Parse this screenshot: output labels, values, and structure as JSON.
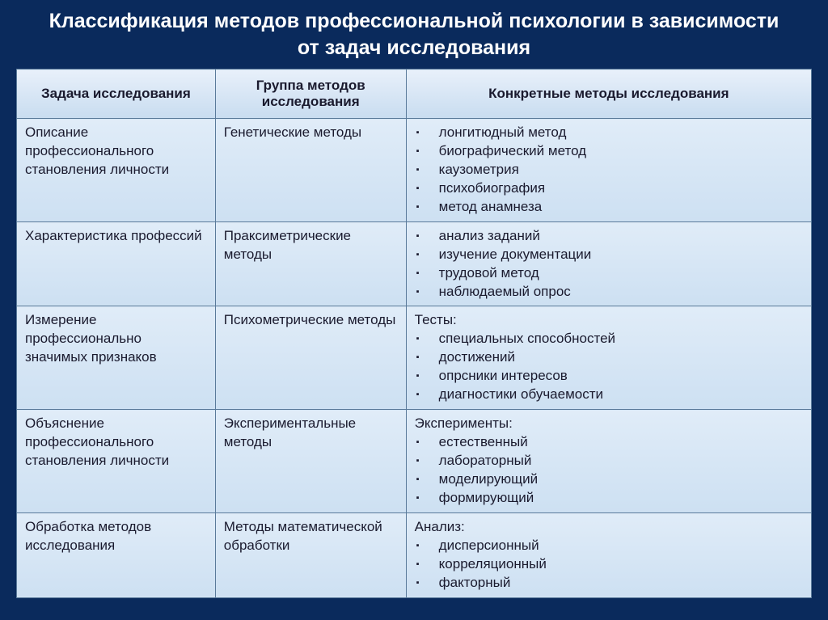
{
  "title": "Классификация методов профессиональной психологии в зависимости от задач исследования",
  "columns": [
    "Задача исследования",
    "Группа методов исследования",
    "Конкретные методы исследования"
  ],
  "rows": [
    {
      "task": "Описание профессионального становления личности",
      "group": "Генетические методы",
      "lead": "",
      "items": [
        "лонгитюдный метод",
        "биографический метод",
        "каузометрия",
        "психобиография",
        "метод анамнеза"
      ]
    },
    {
      "task": "Характеристика профессий",
      "group": "Праксиметрические методы",
      "lead": "",
      "items": [
        "анализ заданий",
        "изучение документации",
        "трудовой метод",
        "наблюдаемый опрос"
      ]
    },
    {
      "task": "Измерение профессионально значимых признаков",
      "group": "Психометрические методы",
      "lead": "Тесты:",
      "items": [
        "специальных способностей",
        "достижений",
        "опрсники интересов",
        "диагностики обучаемости"
      ]
    },
    {
      "task": "Объяснение профессионального становления личности",
      "group": "Экспериментальные методы",
      "lead": "Эксперименты:",
      "items": [
        "естественный",
        "лабораторный",
        "моделирующий",
        "формирующий"
      ]
    },
    {
      "task": "Обработка методов исследования",
      "group": "Методы математической обработки",
      "lead": "Анализ:",
      "items": [
        "дисперсионный",
        "корреляционный",
        "факторный"
      ]
    }
  ]
}
